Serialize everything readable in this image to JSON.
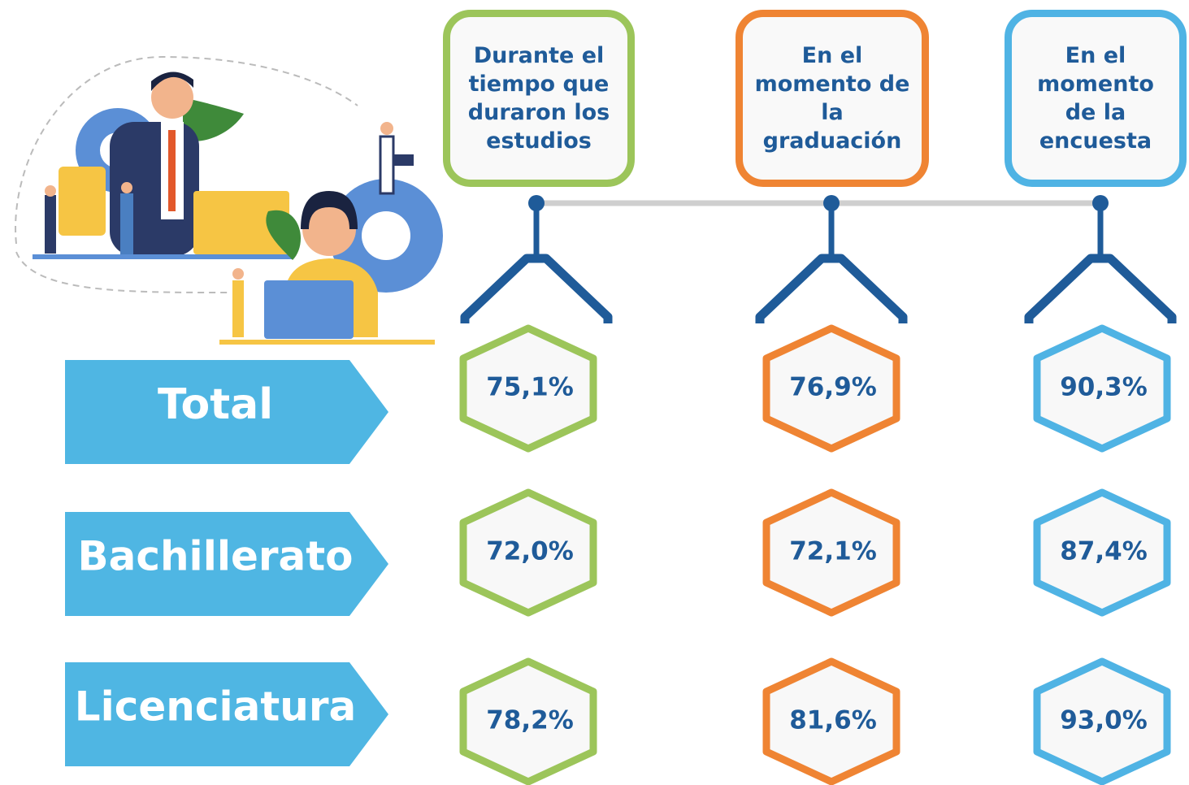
{
  "table": {
    "columns": [
      "Durante el tiempo que duraron los estudios",
      "En el momento de la graduación",
      "En el momento de la encuesta"
    ],
    "rows": [
      {
        "label": "Total",
        "cells": [
          "75,1%",
          "76,9%",
          "90,3%"
        ]
      },
      {
        "label": "Bachillerato",
        "cells": [
          "72,0%",
          "72,1%",
          "87,4%"
        ]
      },
      {
        "label": "Licenciatura",
        "cells": [
          "78,2%",
          "81,6%",
          "93,0%"
        ]
      }
    ]
  }
}
